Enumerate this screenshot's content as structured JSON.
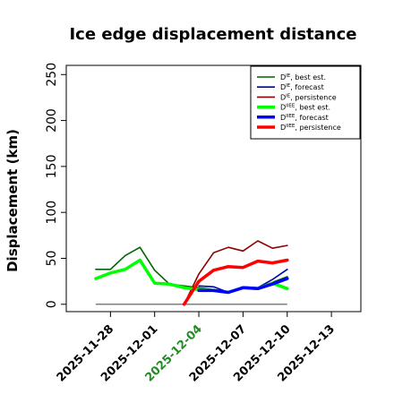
{
  "chart_data": {
    "type": "line",
    "title": "Ice edge displacement distance",
    "ylabel": "Displacement (km)",
    "xlabel": "",
    "x_dates": [
      "2025-11-27",
      "2025-11-28",
      "2025-11-29",
      "2025-11-30",
      "2025-12-01",
      "2025-12-02",
      "2025-12-03",
      "2025-12-04",
      "2025-12-05",
      "2025-12-06",
      "2025-12-07",
      "2025-12-08",
      "2025-12-09",
      "2025-12-10"
    ],
    "xlim": [
      "2025-11-25",
      "2025-12-15"
    ],
    "ylim": [
      -8,
      260
    ],
    "yticks": [
      0,
      50,
      100,
      150,
      200,
      250
    ],
    "xticks": [
      {
        "date": "2025-11-28",
        "label": "2025-11-28",
        "color": "#000000"
      },
      {
        "date": "2025-12-01",
        "label": "2025-12-01",
        "color": "#000000"
      },
      {
        "date": "2025-12-04",
        "label": "2025-12-04",
        "color": "#228B22"
      },
      {
        "date": "2025-12-07",
        "label": "2025-12-07",
        "color": "#000000"
      },
      {
        "date": "2025-12-10",
        "label": "2025-12-10",
        "color": "#000000"
      },
      {
        "date": "2025-12-13",
        "label": "2025-12-13",
        "color": "#000000"
      }
    ],
    "zero_line": {
      "from": "2025-11-27",
      "to": "2025-12-10",
      "value": 0,
      "color": "#555555"
    },
    "legend": {
      "placement": "top-right"
    },
    "series": [
      {
        "base": "D",
        "sup": "IE",
        "suffix": ", best est.",
        "color": "#006400",
        "width": 1.6,
        "x": [
          "2025-11-27",
          "2025-11-28",
          "2025-11-29",
          "2025-11-30",
          "2025-12-01",
          "2025-12-02",
          "2025-12-03",
          "2025-12-04",
          "2025-12-05",
          "2025-12-06",
          "2025-12-07",
          "2025-12-08",
          "2025-12-09",
          "2025-12-10"
        ],
        "values": [
          38,
          38,
          53,
          62,
          37,
          22,
          20,
          18,
          16,
          13,
          18,
          18,
          24,
          30
        ]
      },
      {
        "base": "D",
        "sup": "IE",
        "suffix": ", forecast",
        "color": "#0000AA",
        "width": 1.6,
        "x": [
          "2025-12-04",
          "2025-12-05",
          "2025-12-06",
          "2025-12-07",
          "2025-12-08",
          "2025-12-09",
          "2025-12-10"
        ],
        "values": [
          20,
          19,
          13,
          19,
          18,
          27,
          38
        ]
      },
      {
        "base": "D",
        "sup": "IE",
        "suffix": ", persistence",
        "color": "#8B0000",
        "width": 1.6,
        "x": [
          "2025-12-03",
          "2025-12-04",
          "2025-12-05",
          "2025-12-06",
          "2025-12-07",
          "2025-12-08",
          "2025-12-09",
          "2025-12-10"
        ],
        "values": [
          0,
          33,
          56,
          62,
          58,
          69,
          61,
          64
        ]
      },
      {
        "base": "D",
        "sup": "IIEE",
        "suffix": ", best est.",
        "color": "#00FF00",
        "width": 3.5,
        "x": [
          "2025-11-27",
          "2025-11-28",
          "2025-11-29",
          "2025-11-30",
          "2025-12-01",
          "2025-12-02",
          "2025-12-03",
          "2025-12-04",
          "2025-12-05",
          "2025-12-06",
          "2025-12-07",
          "2025-12-08",
          "2025-12-09",
          "2025-12-10"
        ],
        "values": [
          28,
          34,
          38,
          48,
          23,
          22,
          18,
          16,
          15,
          13,
          18,
          17,
          23,
          17
        ]
      },
      {
        "base": "D",
        "sup": "IIEE",
        "suffix": ", forecast",
        "color": "#0000FF",
        "width": 3.5,
        "x": [
          "2025-12-04",
          "2025-12-05",
          "2025-12-06",
          "2025-12-07",
          "2025-12-08",
          "2025-12-09",
          "2025-12-10"
        ],
        "values": [
          15,
          15,
          13,
          18,
          17,
          22,
          28
        ]
      },
      {
        "base": "D",
        "sup": "IIEE",
        "suffix": ", persistence",
        "color": "#FF0000",
        "width": 3.5,
        "x": [
          "2025-12-03",
          "2025-12-04",
          "2025-12-05",
          "2025-12-06",
          "2025-12-07",
          "2025-12-08",
          "2025-12-09",
          "2025-12-10"
        ],
        "values": [
          0,
          25,
          37,
          41,
          40,
          47,
          45,
          48
        ]
      }
    ]
  }
}
